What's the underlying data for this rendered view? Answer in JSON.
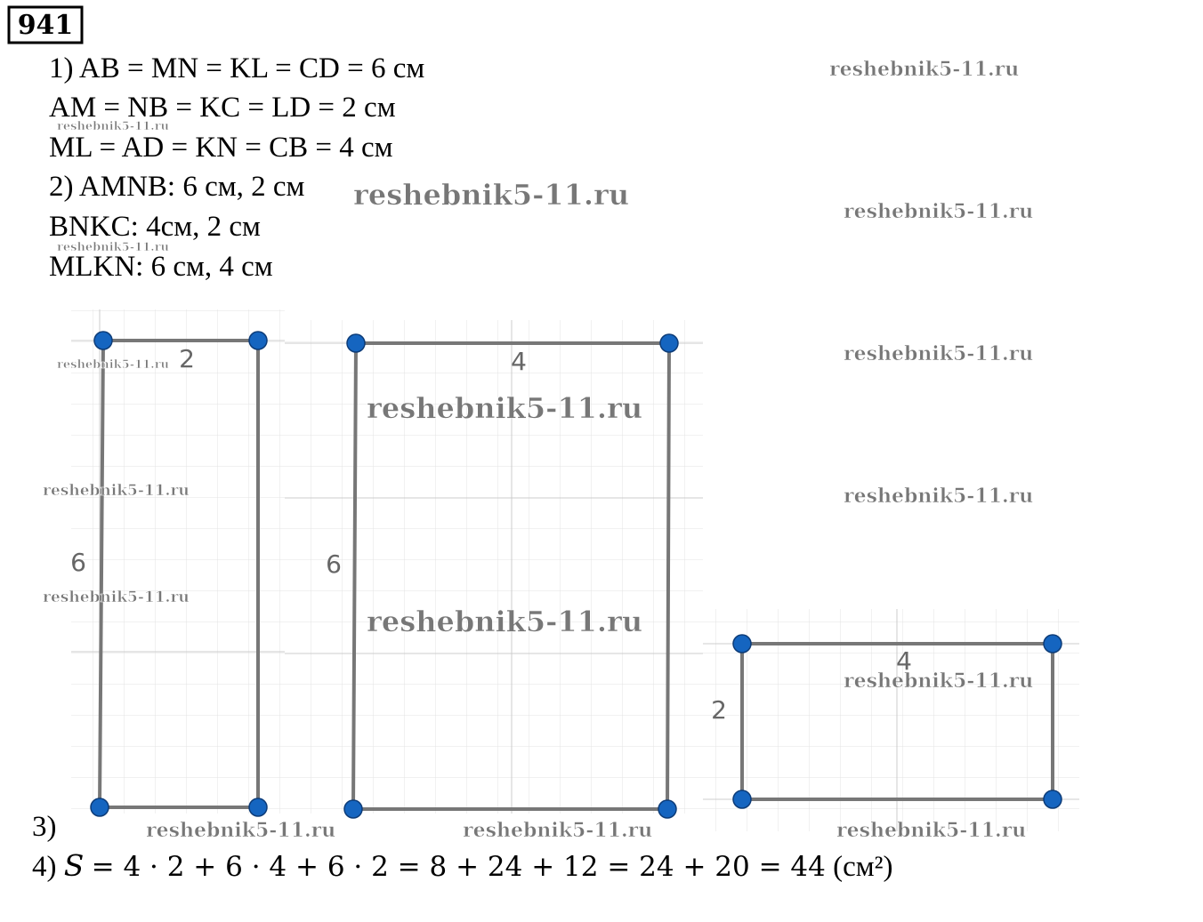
{
  "problem_number": "941",
  "lines": [
    "1) AB = MN = KL = CD = 6 см",
    "AM = NB = KC = LD = 2 см",
    "ML = AD = KN = CB = 4 см",
    "2) AMNB: 6 см, 2 см",
    "BNKC: 4см, 2 см",
    "MLKN: 6 см, 4 см"
  ],
  "figures": [
    {
      "width_label": "2",
      "height_label": "6"
    },
    {
      "width_label": "4",
      "height_label": "6"
    },
    {
      "width_label": "4",
      "height_label": "2"
    }
  ],
  "step3": "3)",
  "step4": {
    "label": "4)",
    "variable": "S",
    "expression": "=  4 · 2 + 6 · 4 + 6 · 2 = 8 + 24 + 12 = 24 + 20 = 44",
    "unit": "(см²)"
  },
  "watermark": "reshebnik5-11.ru"
}
